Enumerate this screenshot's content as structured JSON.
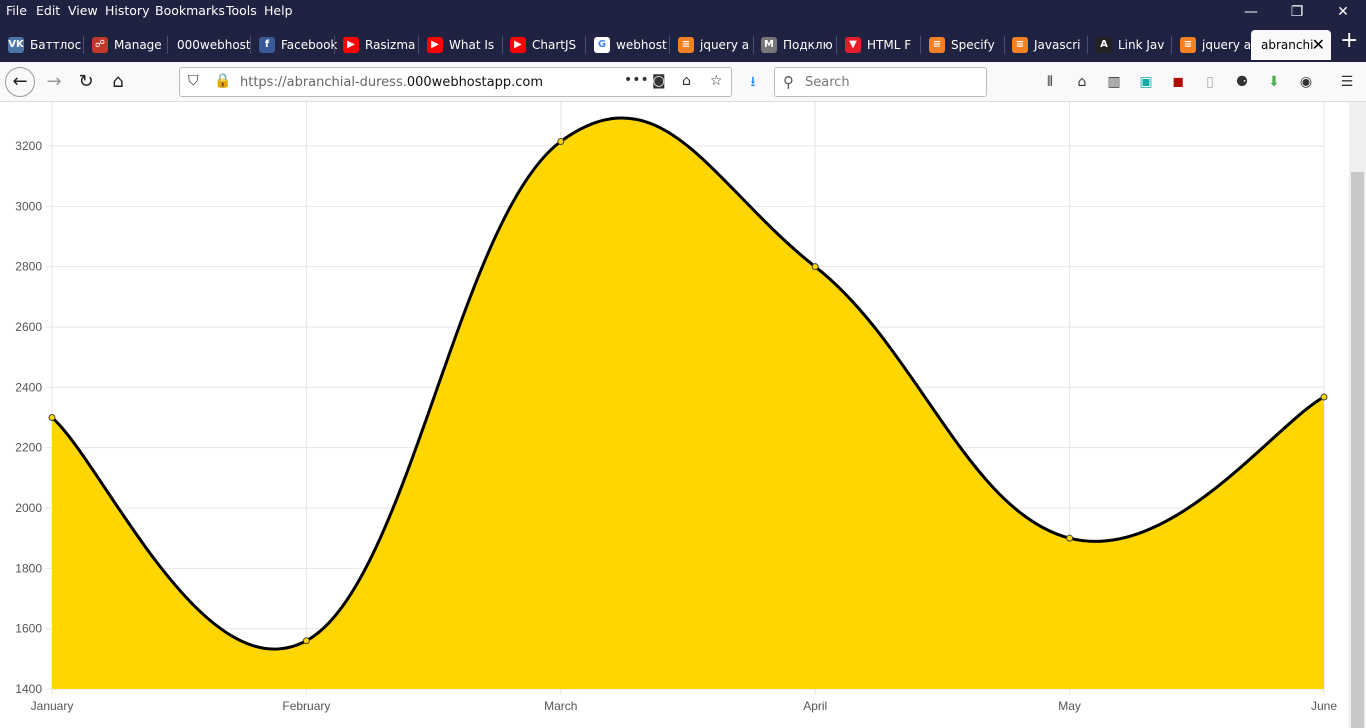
{
  "menubar": {
    "items": [
      "File",
      "Edit",
      "View",
      "History",
      "Bookmarks",
      "Tools",
      "Help"
    ],
    "accel": [
      "F",
      "E",
      "V",
      "s",
      "B",
      "T",
      "H"
    ]
  },
  "window_controls": {
    "minimize": "—",
    "restore": "❐",
    "close": "✕"
  },
  "tabs": [
    {
      "label": "Баттлос",
      "icon": "vk-icon",
      "color": "#4a76a8",
      "glyph": "VK"
    },
    {
      "label": "Manage",
      "icon": "manage-icon",
      "color": "#c0392b",
      "glyph": "☍"
    },
    {
      "label": "000webhost",
      "icon": "",
      "color": "",
      "glyph": ""
    },
    {
      "label": "Facebook",
      "icon": "facebook-icon",
      "color": "#3b5998",
      "glyph": "f"
    },
    {
      "label": "Rasizma",
      "icon": "youtube-icon",
      "color": "#ff0000",
      "glyph": "▶"
    },
    {
      "label": "What Is",
      "icon": "youtube-icon",
      "color": "#ff0000",
      "glyph": "▶"
    },
    {
      "label": "ChartJS",
      "icon": "youtube-icon",
      "color": "#ff0000",
      "glyph": "▶"
    },
    {
      "label": "webhost",
      "icon": "google-icon",
      "color": "#ffffff",
      "glyph": "G"
    },
    {
      "label": "jquery a",
      "icon": "stackoverflow-icon",
      "color": "#f48024",
      "glyph": "≡"
    },
    {
      "label": "Подклю",
      "icon": "gmail-icon",
      "color": "#777777",
      "glyph": "M"
    },
    {
      "label": "HTML F",
      "icon": "vivaldi-icon",
      "color": "#e51d2a",
      "glyph": "▼"
    },
    {
      "label": "Specify",
      "icon": "stackoverflow-icon",
      "color": "#f48024",
      "glyph": "≡"
    },
    {
      "label": "Javascri",
      "icon": "stackoverflow-icon",
      "color": "#f48024",
      "glyph": "≡"
    },
    {
      "label": "Link Jav",
      "icon": "react-icon",
      "color": "#222222",
      "glyph": "A"
    },
    {
      "label": "jquery a",
      "icon": "stackoverflow-icon",
      "color": "#f48024",
      "glyph": "≡"
    },
    {
      "label": "abranchi",
      "icon": "",
      "color": "",
      "glyph": ""
    }
  ],
  "newtab_label": "+",
  "tab_close": "✕",
  "navbar": {
    "back": "←",
    "forward": "→",
    "reload": "↻",
    "home": "⌂",
    "url_prefix": "https://abranchial-duress.",
    "url_domain": "000webhostapp.com",
    "page_actions": "•••",
    "search_placeholder": "Search",
    "menu": "☰"
  },
  "chart_data": {
    "type": "area",
    "categories": [
      "January",
      "February",
      "March",
      "April",
      "May",
      "June"
    ],
    "values": [
      2300,
      1560,
      3215,
      2800,
      1900,
      2368
    ],
    "ylim": [
      1400,
      3300
    ],
    "yticks": [
      1400,
      1600,
      1800,
      2000,
      2200,
      2400,
      2600,
      2800,
      3000,
      3200
    ],
    "fill_color": "#ffd600",
    "line_color": "#000000",
    "point_color": "#ffd600",
    "grid": true,
    "title": "",
    "xlabel": "",
    "ylabel": ""
  }
}
